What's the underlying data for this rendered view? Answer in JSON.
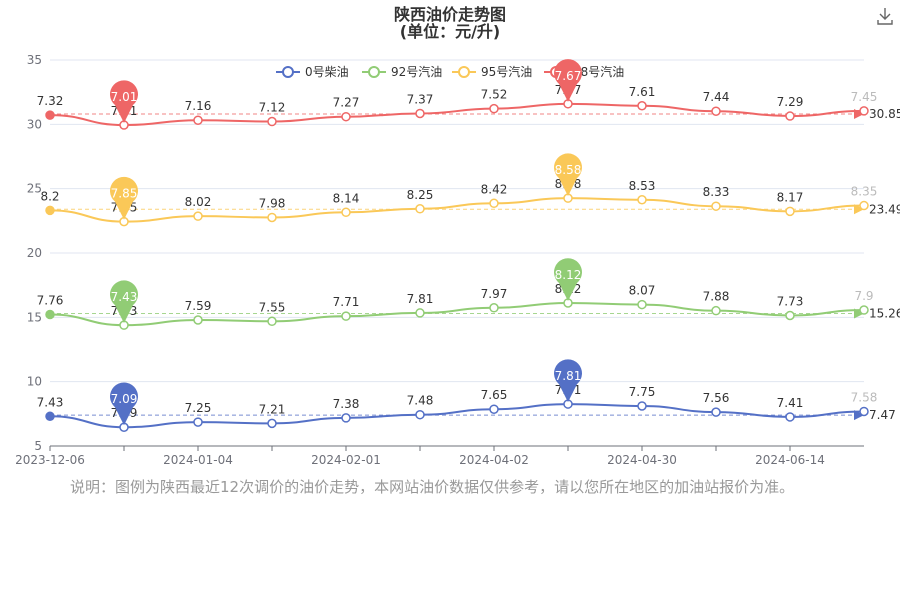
{
  "title": "陕西油价走势图",
  "subtitle": "(单位：元/升)",
  "note": "说明：图例为陕西最近12次调价的油价走势，本网站油价数据仅供参考，请以您所在地区的加油站报价为准。",
  "icons": {
    "download": "download-icon"
  },
  "colors": {
    "diesel0": "#5470c6",
    "g92": "#91cc75",
    "g95": "#fac858",
    "g98": "#ee6666",
    "axis": "#6e7079",
    "grid": "#e0e6f1"
  },
  "chart_data": {
    "type": "line",
    "x_tick_labels": [
      "2023-12-06",
      "2024-01-04",
      "2024-02-01",
      "2024-04-02",
      "2024-04-30",
      "2024-06-14"
    ],
    "y_ticks": [
      5,
      10,
      15,
      20,
      25,
      30,
      35
    ],
    "ylim": [
      5,
      35
    ],
    "legend": [
      "0号柴油",
      "92号汽油",
      "95号汽油",
      "98号汽油"
    ],
    "legend_position": "top-center",
    "series": [
      {
        "name": "0号柴油",
        "labels": [
          "7.43",
          "7.09",
          "7.25",
          "7.21",
          "7.38",
          "7.48",
          "7.65",
          "7.81",
          "7.75",
          "7.56",
          "7.41",
          "7.58"
        ],
        "max_label": "7.81",
        "min_label": "7.09",
        "average_label": "7.47"
      },
      {
        "name": "92号汽油",
        "labels": [
          "7.76",
          "7.43",
          "7.59",
          "7.55",
          "7.71",
          "7.81",
          "7.97",
          "8.12",
          "8.07",
          "7.88",
          "7.73",
          "7.9"
        ],
        "max_label": "8.12",
        "min_label": "7.43",
        "average_label": "15.26"
      },
      {
        "name": "95号汽油",
        "labels": [
          "8.2",
          "7.85",
          "8.02",
          "7.98",
          "8.14",
          "8.25",
          "8.42",
          "8.58",
          "8.53",
          "8.33",
          "8.17",
          "8.35"
        ],
        "max_label": "8.58",
        "min_label": "7.85",
        "average_label": "23.49"
      },
      {
        "name": "98号汽油",
        "labels": [
          "7.32",
          "7.01",
          "7.16",
          "7.12",
          "7.27",
          "7.37",
          "7.52",
          "7.67",
          "7.61",
          "7.44",
          "7.29",
          "7.45"
        ],
        "max_label": "7.67",
        "min_label": "7.01",
        "average_label": "30.85"
      }
    ]
  }
}
